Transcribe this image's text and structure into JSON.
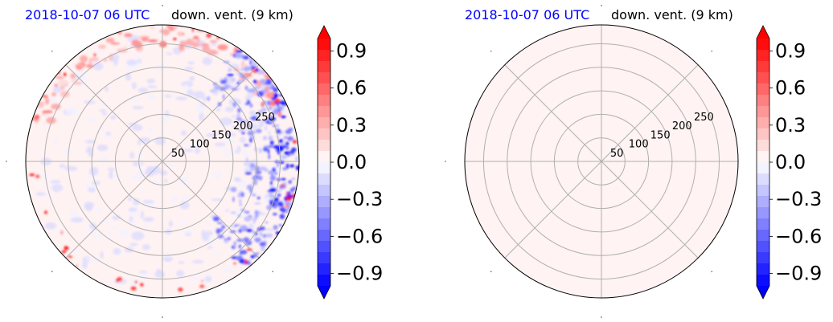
{
  "chart_data": [
    {
      "type": "heatmap",
      "projection": "polar",
      "title_left": "2018-10-07 06 UTC",
      "title_right": "down. vent. (9 km)",
      "radial_ticks": [
        50,
        100,
        150,
        200,
        250
      ],
      "rlim": [
        0,
        290
      ],
      "grid": true,
      "field": "noisy",
      "colorbar": {
        "cmap": "bwr",
        "vmin": -1.0,
        "vmax": 1.0,
        "levels": 22,
        "extend": "both",
        "ticks": [
          "0.9",
          "0.6",
          "0.3",
          "0.0",
          "−0.3",
          "−0.6",
          "−0.9"
        ],
        "tick_values": [
          0.9,
          0.6,
          0.3,
          0.0,
          -0.3,
          -0.6,
          -0.9
        ]
      }
    },
    {
      "type": "heatmap",
      "projection": "polar",
      "title_left": "2018-10-07 06 UTC",
      "title_right": "down. vent. (9 km)",
      "radial_ticks": [
        50,
        100,
        150,
        200,
        250
      ],
      "rlim": [
        0,
        290
      ],
      "grid": true,
      "field": "uniform",
      "uniform_value": 0.05,
      "colorbar": {
        "cmap": "bwr",
        "vmin": -1.0,
        "vmax": 1.0,
        "levels": 22,
        "extend": "both",
        "ticks": [
          "0.9",
          "0.6",
          "0.3",
          "0.0",
          "−0.3",
          "−0.6",
          "−0.9"
        ],
        "tick_values": [
          0.9,
          0.6,
          0.3,
          0.0,
          -0.3,
          -0.6,
          -0.9
        ]
      }
    }
  ]
}
